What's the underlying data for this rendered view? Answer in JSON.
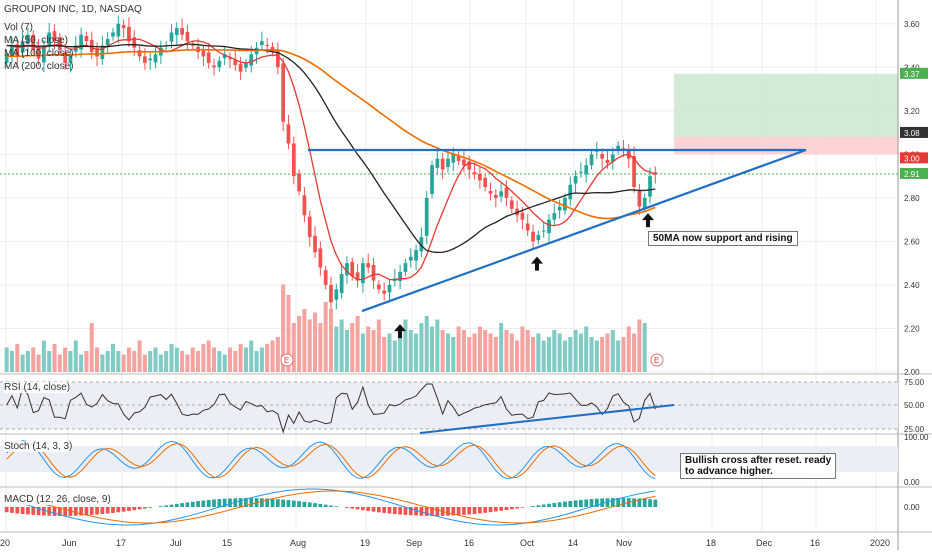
{
  "legend": {
    "title": "GROUPON INC, 1D, NASDAQ",
    "vol": "Vol (7)",
    "ma50": "MA (50, close)",
    "ma100": "MA (100, close)",
    "ma200": "MA (200, close)"
  },
  "annotations": {
    "support_note": "50MA now support and rising",
    "stoch_note_line1": "Bullish cross after reset. ready",
    "stoch_note_line2": "to advance higher."
  },
  "panes": {
    "rsi_label": "RSI (14, close)",
    "stoch_label": "Stoch (14, 3, 3)",
    "macd_label": "MACD (12, 26, close, 9)"
  },
  "price_tags": [
    {
      "label": "3.37",
      "color": "#4caf50"
    },
    {
      "label": "3.08",
      "color": "#333333"
    },
    {
      "label": "3.00",
      "color": "#e53935"
    },
    {
      "label": "2.91",
      "color": "#4caf50"
    }
  ],
  "colors": {
    "up": "#26a69a",
    "down": "#ef5350",
    "up_vol": "#80cbc4",
    "down_vol": "#f4a3a0",
    "ma50": "#e53935",
    "ma100": "#222222",
    "ma200": "#ef6c00",
    "trendline": "#1e6fc5",
    "target_zone": "#c8e6c9",
    "stop_zone": "#ffcdd2",
    "grid": "#eeeeee",
    "rsi": "#333333",
    "stoch_k": "#2196f3",
    "stoch_d": "#ef6c00",
    "macd": "#2196f3",
    "signal": "#ef6c00"
  },
  "chart_data": {
    "type": "candlestick",
    "y_ticks": [
      "3.60",
      "3.40",
      "3.20",
      "3.00",
      "2.80",
      "2.60",
      "2.40",
      "2.20",
      "2.00"
    ],
    "ylim": [
      2.0,
      3.7
    ],
    "x_tick_labels": [
      "20",
      "Jun",
      "17",
      "Jul",
      "15",
      "Aug",
      "19",
      "Sep",
      "16",
      "Oct",
      "14",
      "Nov",
      "18",
      "Dec",
      "16",
      "2020"
    ],
    "closes": [
      3.46,
      3.5,
      3.45,
      3.52,
      3.55,
      3.48,
      3.44,
      3.5,
      3.56,
      3.52,
      3.48,
      3.42,
      3.46,
      3.5,
      3.55,
      3.52,
      3.47,
      3.45,
      3.5,
      3.53,
      3.56,
      3.6,
      3.58,
      3.52,
      3.49,
      3.45,
      3.42,
      3.44,
      3.46,
      3.49,
      3.5,
      3.56,
      3.58,
      3.55,
      3.52,
      3.5,
      3.47,
      3.45,
      3.42,
      3.4,
      3.43,
      3.46,
      3.44,
      3.41,
      3.38,
      3.42,
      3.46,
      3.49,
      3.52,
      3.5,
      3.47,
      3.4,
      3.15,
      3.05,
      2.9,
      2.83,
      2.72,
      2.62,
      2.55,
      2.48,
      2.4,
      2.32,
      2.38,
      2.45,
      2.5,
      2.44,
      2.42,
      2.5,
      2.48,
      2.42,
      2.38,
      2.36,
      2.4,
      2.43,
      2.46,
      2.5,
      2.53,
      2.56,
      2.62,
      2.8,
      2.95,
      2.98,
      2.93,
      2.98,
      3.0,
      2.97,
      2.95,
      2.93,
      2.91,
      2.88,
      2.85,
      2.82,
      2.8,
      2.83,
      2.8,
      2.75,
      2.72,
      2.7,
      2.65,
      2.6,
      2.63,
      2.65,
      2.7,
      2.73,
      2.76,
      2.8,
      2.86,
      2.9,
      2.92,
      2.95,
      3.0,
      3.02,
      2.98,
      2.96,
      3.0,
      3.04,
      3.02,
      2.98,
      2.85,
      2.76,
      2.8,
      2.9,
      2.91
    ],
    "volumes": [
      0.7,
      0.6,
      0.8,
      0.5,
      0.6,
      0.7,
      0.5,
      0.9,
      0.6,
      0.8,
      0.5,
      0.7,
      0.6,
      0.9,
      0.5,
      0.6,
      1.4,
      0.7,
      0.5,
      0.6,
      0.8,
      0.6,
      0.5,
      0.7,
      0.6,
      0.9,
      0.5,
      0.6,
      0.7,
      0.5,
      0.6,
      0.8,
      0.7,
      0.6,
      0.5,
      0.7,
      0.6,
      0.8,
      0.9,
      0.7,
      0.6,
      0.5,
      0.7,
      0.6,
      0.8,
      0.7,
      0.9,
      0.6,
      0.7,
      0.8,
      0.9,
      1.0,
      2.5,
      2.2,
      1.4,
      1.6,
      1.8,
      1.5,
      1.7,
      1.4,
      2.0,
      1.8,
      1.3,
      1.5,
      1.2,
      1.4,
      1.6,
      1.1,
      1.3,
      1.2,
      1.5,
      1.0,
      1.1,
      0.9,
      1.3,
      1.5,
      1.2,
      1.1,
      1.4,
      1.6,
      1.3,
      1.5,
      1.2,
      1.1,
      1.0,
      1.3,
      1.2,
      1.0,
      1.1,
      1.3,
      1.2,
      1.1,
      1.0,
      1.4,
      1.2,
      1.1,
      0.9,
      1.3,
      1.2,
      1.0,
      1.1,
      0.9,
      1.0,
      1.2,
      1.1,
      0.9,
      1.0,
      1.2,
      1.1,
      1.3,
      1.0,
      0.9,
      1.0,
      1.1,
      1.2,
      0.9,
      1.0,
      1.3,
      1.1,
      1.5,
      1.4
    ]
  }
}
